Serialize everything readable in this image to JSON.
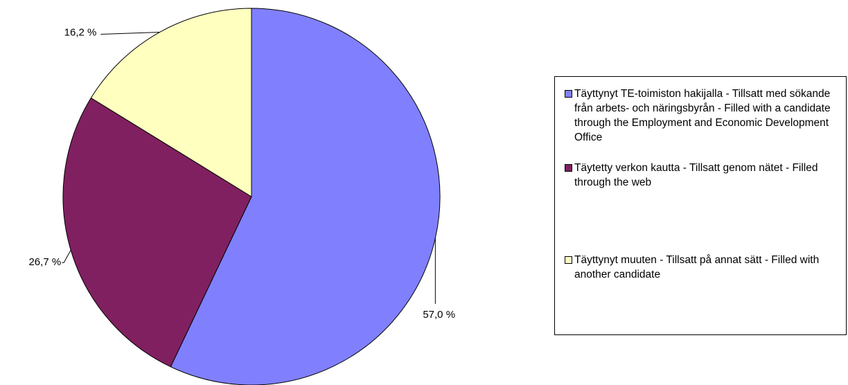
{
  "chart_data": {
    "type": "pie",
    "categories": [
      "Täyttynyt TE-toimiston hakijalla - Tillsatt med sökande från arbets- och näringsbyrån - Filled with a candidate through the Employment and Economic Development Office",
      "Täytetty verkon kautta - Tillsatt genom nätet - Filled through the web",
      "Täyttynyt muuten - Tillsatt på annat sätt - Filled with another candidate"
    ],
    "values": [
      57.0,
      26.7,
      16.2
    ],
    "value_labels": [
      "57,0 %",
      "26,7 %",
      "16,2 %"
    ],
    "colors": [
      "#8080ff",
      "#802060",
      "#ffffc0"
    ],
    "legend": "right"
  }
}
